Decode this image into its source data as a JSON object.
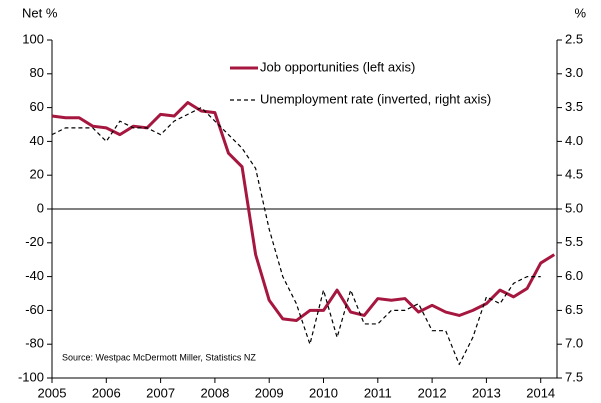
{
  "chart_data": {
    "type": "line",
    "y_label": "Net %",
    "y2_label": "%",
    "annotation": "Source: Westpac McDermott Miller, Statistics NZ",
    "x": [
      2005,
      2005.25,
      2005.5,
      2005.75,
      2006,
      2006.25,
      2006.5,
      2006.75,
      2007,
      2007.25,
      2007.5,
      2007.75,
      2008,
      2008.25,
      2008.5,
      2008.75,
      2009,
      2009.25,
      2009.5,
      2009.75,
      2010,
      2010.25,
      2010.5,
      2010.75,
      2011,
      2011.25,
      2011.5,
      2011.75,
      2012,
      2012.25,
      2012.5,
      2012.75,
      2013,
      2013.25,
      2013.5,
      2013.75,
      2014,
      2014.25
    ],
    "series": [
      {
        "name": "Job opportunities (left axis)",
        "color": "#a6173f",
        "axis": "y",
        "values": [
          55,
          54,
          54,
          49,
          48,
          44,
          49,
          48,
          56,
          55,
          63,
          58,
          57,
          33,
          25,
          -27,
          -54,
          -65,
          -66,
          -60,
          -60,
          -48,
          -61,
          -63,
          -53,
          -54,
          -53,
          -61,
          -57,
          -61,
          -63,
          -60,
          -56,
          -48,
          -52,
          -47,
          -32,
          -27
        ]
      },
      {
        "name": "Unemployment rate (inverted, right axis)",
        "color": "#000000",
        "axis": "y2",
        "dashed": true,
        "values": [
          3.9,
          3.8,
          3.8,
          3.8,
          4.0,
          3.7,
          3.8,
          3.8,
          3.9,
          3.7,
          3.6,
          3.5,
          3.7,
          3.9,
          4.1,
          4.4,
          5.3,
          6.0,
          6.4,
          7.0,
          6.2,
          6.9,
          6.2,
          6.7,
          6.7,
          6.5,
          6.5,
          6.4,
          6.8,
          6.8,
          7.3,
          6.9,
          6.3,
          6.4,
          6.1,
          6.0,
          6.0,
          null
        ]
      }
    ],
    "xlim": [
      2005,
      2014.3
    ],
    "xticks": [
      2005,
      2006,
      2007,
      2008,
      2009,
      2010,
      2011,
      2012,
      2013,
      2014
    ],
    "ylim": [
      -100,
      100
    ],
    "yticks": [
      -100,
      -80,
      -60,
      -40,
      -20,
      0,
      20,
      40,
      60,
      80,
      100
    ],
    "y2lim": [
      7.5,
      2.5
    ],
    "y2ticks": [
      7.5,
      {
        "value": 7,
        "label": "7.0"
      },
      6.5,
      {
        "value": 6,
        "label": "6.0"
      },
      5.5,
      {
        "value": 5,
        "label": "5.0"
      },
      4.5,
      {
        "value": 4,
        "label": "4.0"
      },
      3.5,
      {
        "value": 3,
        "label": "3.0"
      },
      2.5
    ]
  }
}
